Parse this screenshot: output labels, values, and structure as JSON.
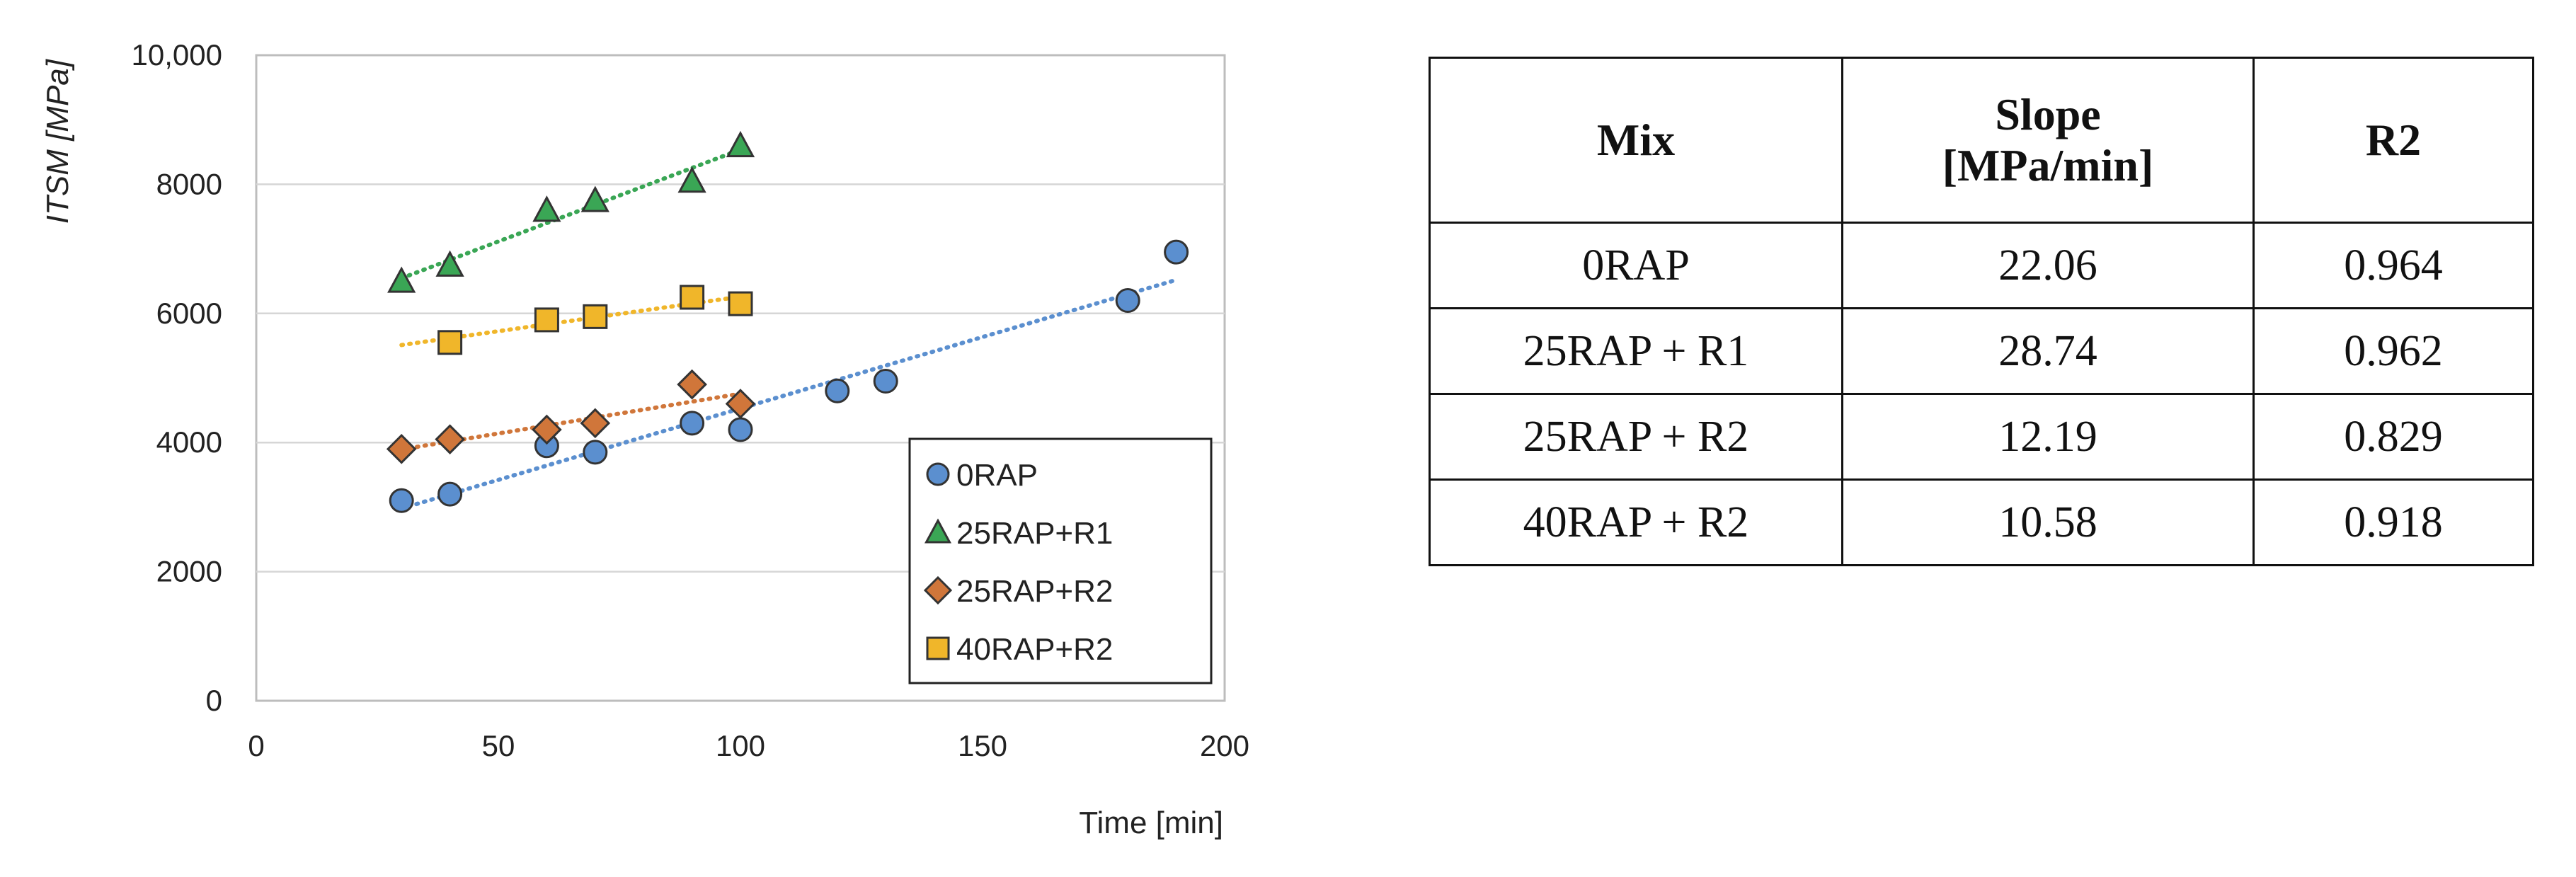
{
  "chart_data": {
    "type": "scatter",
    "xlabel": "Time [min]",
    "ylabel": "ITSM [MPa]",
    "xlim": [
      0,
      200
    ],
    "ylim": [
      0,
      10000
    ],
    "xticks": [
      "0",
      "50",
      "100",
      "150",
      "200"
    ],
    "yticks": [
      "0",
      "2000",
      "4000",
      "6000",
      "8000",
      "10,000"
    ],
    "grid": "horizontal",
    "legend_position": "bottom-right",
    "trendlines": "dotted linear",
    "series": [
      {
        "name": "0RAP",
        "marker": "circle",
        "color": "#5b8fcf",
        "x": [
          30,
          40,
          60,
          70,
          90,
          100,
          120,
          130,
          180,
          190
        ],
        "y": [
          3100,
          3200,
          3950,
          3850,
          4300,
          4200,
          4800,
          4950,
          6200,
          6950
        ]
      },
      {
        "name": "25RAP+R1",
        "marker": "triangle",
        "color": "#3aa655",
        "x": [
          30,
          40,
          60,
          70,
          90,
          100
        ],
        "y": [
          6500,
          6750,
          7600,
          7750,
          8050,
          8600
        ]
      },
      {
        "name": "25RAP+R2",
        "marker": "diamond",
        "color": "#d0763a",
        "x": [
          30,
          40,
          60,
          70,
          90,
          100
        ],
        "y": [
          3900,
          4050,
          4200,
          4300,
          4900,
          4600
        ]
      },
      {
        "name": "40RAP+R2",
        "marker": "square",
        "color": "#f0b62a",
        "x": [
          40,
          60,
          70,
          90,
          100
        ],
        "y": [
          5550,
          5900,
          5950,
          6250,
          6150
        ]
      }
    ]
  },
  "table": {
    "headers": [
      "Mix",
      "Slope [MPa/min]",
      "R2"
    ],
    "rows": [
      [
        "0RAP",
        "22.06",
        "0.964"
      ],
      [
        "25RAP + R1",
        "28.74",
        "0.962"
      ],
      [
        "25RAP + R2",
        "12.19",
        "0.829"
      ],
      [
        "40RAP + R2",
        "10.58",
        "0.918"
      ]
    ]
  }
}
